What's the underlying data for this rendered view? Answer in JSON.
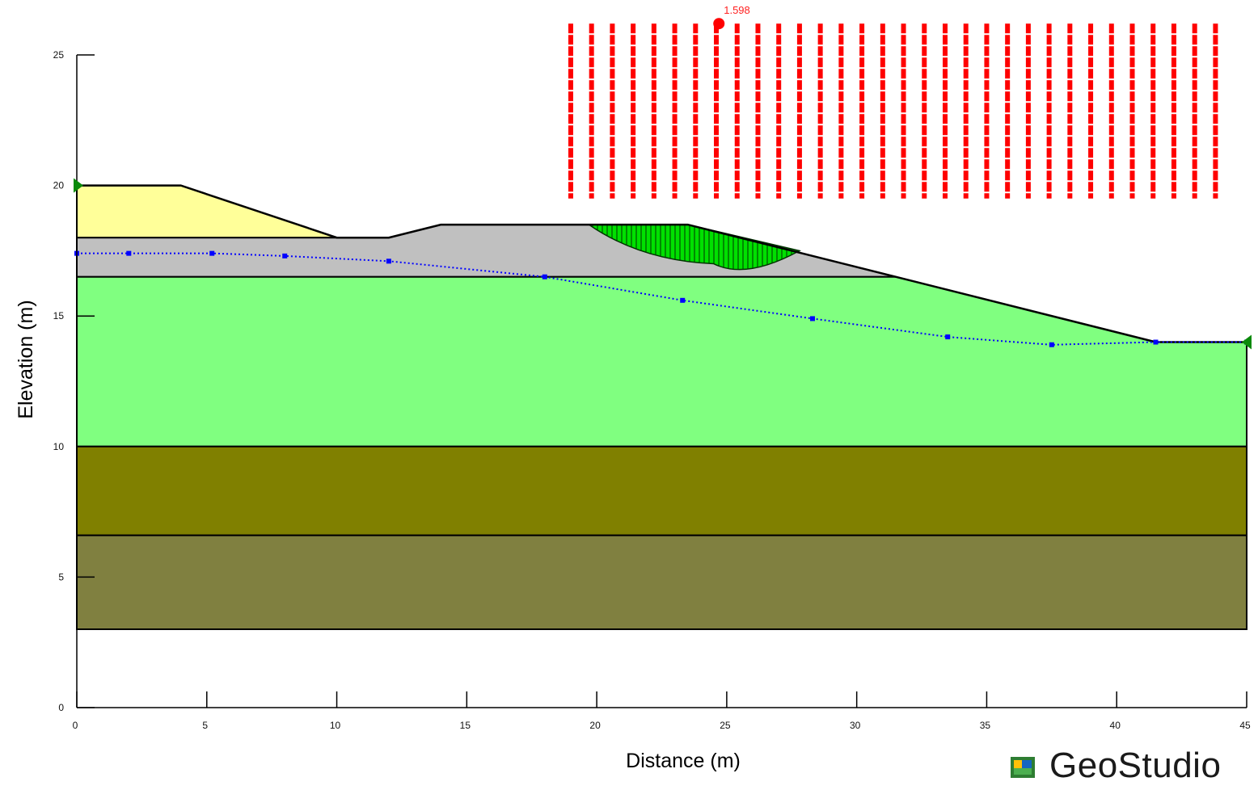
{
  "chart_data": {
    "type": "slope_stability_section",
    "xlabel": "Distance (m)",
    "ylabel": "Elevation (m)",
    "xlim": [
      0,
      45
    ],
    "ylim": [
      0,
      25
    ],
    "x_ticks": [
      "0",
      "5",
      "10",
      "15",
      "20",
      "25",
      "30",
      "35",
      "40",
      "45"
    ],
    "y_ticks": [
      "0",
      "5",
      "10",
      "15",
      "20",
      "25"
    ],
    "factor_of_safety": "1.598",
    "critical_center": [
      24.7,
      26.2
    ],
    "layers": [
      {
        "id": "embankment-fill",
        "color": "#ffff99",
        "points": [
          [
            0,
            20
          ],
          [
            4,
            20
          ],
          [
            10,
            18
          ],
          [
            0,
            18
          ]
        ]
      },
      {
        "id": "grey-layer",
        "color": "#c0c0c0",
        "points": [
          [
            0,
            18
          ],
          [
            12,
            18
          ],
          [
            14,
            18.5
          ],
          [
            23.5,
            18.5
          ],
          [
            31.5,
            16.5
          ],
          [
            0,
            16.5
          ]
        ]
      },
      {
        "id": "green-layer",
        "color": "#80ff80",
        "points": [
          [
            0,
            16.5
          ],
          [
            31.5,
            16.5
          ],
          [
            41.5,
            14
          ],
          [
            45,
            14
          ],
          [
            45,
            10
          ],
          [
            0,
            10
          ]
        ]
      },
      {
        "id": "olive-layer",
        "color": "#808000",
        "points": [
          [
            0,
            10
          ],
          [
            45,
            10
          ],
          [
            45,
            6.6
          ],
          [
            0,
            6.6
          ]
        ]
      },
      {
        "id": "dark-olive-layer",
        "color": "#808040",
        "points": [
          [
            0,
            6.6
          ],
          [
            45,
            6.6
          ],
          [
            45,
            3
          ],
          [
            0,
            3
          ]
        ]
      }
    ],
    "ground_surface": [
      [
        0,
        20
      ],
      [
        4,
        20
      ],
      [
        10,
        18
      ],
      [
        12,
        18
      ],
      [
        14,
        18.5
      ],
      [
        23.5,
        18.5
      ],
      [
        31.5,
        16.5
      ],
      [
        41.5,
        14
      ],
      [
        45,
        14
      ]
    ],
    "piezometric_line": [
      [
        0,
        17.4
      ],
      [
        2,
        17.4
      ],
      [
        5.2,
        17.4
      ],
      [
        8,
        17.3
      ],
      [
        12,
        17.1
      ],
      [
        18,
        16.5
      ],
      [
        23.3,
        15.6
      ],
      [
        28.3,
        14.9
      ],
      [
        33.5,
        14.2
      ],
      [
        37.5,
        13.9
      ],
      [
        41.5,
        14
      ],
      [
        45,
        14
      ]
    ],
    "slip_surface": {
      "color": "#00cc00",
      "entry": [
        19.7,
        18.5
      ],
      "exit": [
        27.8,
        17.5
      ],
      "bottom": [
        24.5,
        17.0
      ]
    },
    "grid_columns": {
      "x_start": 19,
      "x_end": 43.8,
      "count": 32,
      "y_top": 26.2,
      "y_bottom": 19.5,
      "color": "#ff0000"
    },
    "boundary_markers": [
      [
        0,
        20
      ],
      [
        45,
        14
      ]
    ]
  },
  "logo": {
    "text": "GeoStudio"
  }
}
